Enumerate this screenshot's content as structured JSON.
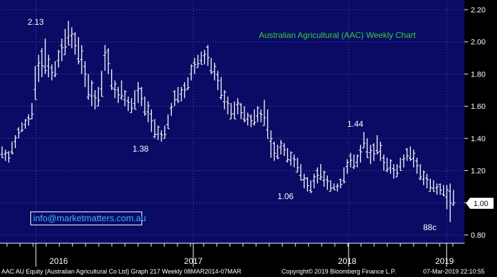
{
  "chart_data": {
    "type": "bar",
    "subtype": "weekly high-low price bars",
    "title": "Australian Agricultural (AAC) Weekly Chart",
    "ylim": [
      0.75,
      2.25
    ],
    "y_ticks": [
      "2.20",
      "2.00",
      "1.80",
      "1.60",
      "1.40",
      "1.20",
      "1.00",
      "0.80"
    ],
    "x_labels": [
      "2016",
      "2017",
      "2018",
      "2019"
    ],
    "annotations": [
      "2.13",
      "1.38",
      "1.06",
      "1.44",
      "88c"
    ],
    "last_price_label": "1.00",
    "colors": {
      "background": "#0b0b66",
      "bars": "#ffffff",
      "grid": "#5a5aa0",
      "title": "#35d035",
      "axis_bg": "#000000"
    },
    "series": [
      {
        "values_high": [
          1.35,
          1.33,
          1.32,
          1.38,
          1.42,
          1.47,
          1.5,
          1.52,
          1.55,
          1.62,
          1.85,
          1.92,
          1.96,
          2.02,
          1.92,
          1.86,
          1.88,
          1.95,
          2.02,
          2.08,
          2.13,
          2.09,
          2.06,
          2.03,
          1.98,
          1.88,
          1.8,
          1.76,
          1.7,
          1.72,
          1.82,
          1.98,
          1.96,
          1.83,
          1.76,
          1.72,
          1.76,
          1.7,
          1.66,
          1.65,
          1.7,
          1.75,
          1.72,
          1.66,
          1.63,
          1.58,
          1.52,
          1.48,
          1.45,
          1.48,
          1.55,
          1.62,
          1.7,
          1.72,
          1.72,
          1.75,
          1.78,
          1.86,
          1.9,
          1.92,
          1.94,
          1.95,
          1.98,
          1.9,
          1.87,
          1.82,
          1.78,
          1.7,
          1.66,
          1.62,
          1.63,
          1.65,
          1.62,
          1.6,
          1.56,
          1.55,
          1.58,
          1.6,
          1.58,
          1.64,
          1.58,
          1.45,
          1.38,
          1.36,
          1.39,
          1.37,
          1.34,
          1.32,
          1.3,
          1.28,
          1.24,
          1.18,
          1.16,
          1.14,
          1.18,
          1.22,
          1.24,
          1.2,
          1.17,
          1.14,
          1.12,
          1.12,
          1.15,
          1.22,
          1.27,
          1.31,
          1.3,
          1.3,
          1.36,
          1.44,
          1.4,
          1.36,
          1.37,
          1.42,
          1.38,
          1.3,
          1.28,
          1.27,
          1.24,
          1.24,
          1.28,
          1.3,
          1.34,
          1.35,
          1.33,
          1.28,
          1.24,
          1.2,
          1.18,
          1.15,
          1.14,
          1.12,
          1.12,
          1.11,
          1.11,
          1.12,
          1.08
        ],
        "values_low": [
          1.28,
          1.26,
          1.25,
          1.3,
          1.34,
          1.4,
          1.44,
          1.46,
          1.48,
          1.52,
          1.64,
          1.75,
          1.78,
          1.8,
          1.78,
          1.76,
          1.78,
          1.84,
          1.88,
          1.92,
          1.98,
          1.96,
          1.92,
          1.86,
          1.8,
          1.72,
          1.64,
          1.6,
          1.58,
          1.6,
          1.66,
          1.82,
          1.8,
          1.7,
          1.65,
          1.62,
          1.64,
          1.6,
          1.57,
          1.56,
          1.58,
          1.62,
          1.6,
          1.54,
          1.5,
          1.44,
          1.4,
          1.39,
          1.38,
          1.4,
          1.46,
          1.54,
          1.6,
          1.62,
          1.63,
          1.65,
          1.7,
          1.76,
          1.8,
          1.84,
          1.86,
          1.86,
          1.85,
          1.8,
          1.76,
          1.7,
          1.64,
          1.58,
          1.55,
          1.52,
          1.52,
          1.55,
          1.52,
          1.5,
          1.48,
          1.47,
          1.48,
          1.5,
          1.5,
          1.48,
          1.4,
          1.28,
          1.26,
          1.27,
          1.3,
          1.29,
          1.25,
          1.23,
          1.22,
          1.19,
          1.14,
          1.09,
          1.07,
          1.06,
          1.09,
          1.12,
          1.14,
          1.1,
          1.08,
          1.07,
          1.08,
          1.07,
          1.09,
          1.12,
          1.18,
          1.22,
          1.21,
          1.22,
          1.25,
          1.34,
          1.28,
          1.24,
          1.26,
          1.3,
          1.26,
          1.2,
          1.19,
          1.18,
          1.15,
          1.16,
          1.2,
          1.22,
          1.26,
          1.26,
          1.22,
          1.18,
          1.14,
          1.11,
          1.09,
          1.07,
          1.07,
          1.05,
          1.05,
          1.04,
          0.96,
          0.88,
          0.98
        ]
      }
    ]
  },
  "footer": {
    "left": "AAC AU Equity (Australian Agricultural Co Ltd) Graph 217  Weekly 08MAR2014-07MAR",
    "copyright": "Copyright© 2019 Bloomberg Finance L.P.",
    "timestamp": "07-Mar-2019 22:10:55"
  },
  "email": "info@marketmatters.com.au"
}
